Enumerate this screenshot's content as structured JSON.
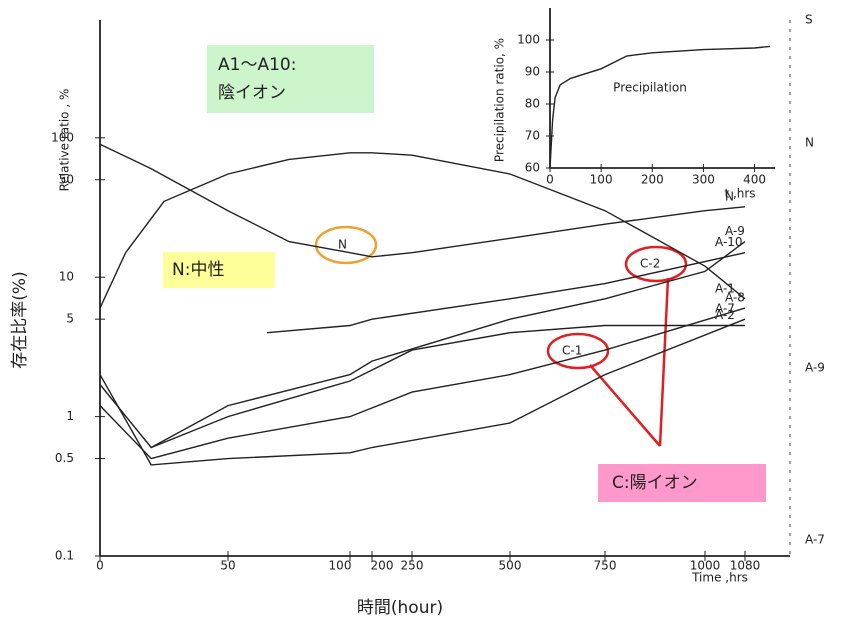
{
  "chart_data": [
    {
      "type": "line",
      "ylabel": "Relative ratio , %",
      "xlabel": "Time ,hrs",
      "ylabel_outer": "存在比率(%)",
      "xlabel_outer": "時間(hour)",
      "log_y": true,
      "ylim": [
        0.1,
        700
      ],
      "yticks": [
        0.1,
        0.5,
        1,
        5,
        10,
        50,
        100
      ],
      "xticks": [
        0,
        50,
        100,
        200,
        250,
        500,
        750,
        1000,
        1080
      ],
      "xlim": [
        0,
        1080
      ],
      "series": [
        {
          "name": "A-1",
          "color": "#222",
          "x": [
            0,
            10,
            25,
            50,
            75,
            100,
            200,
            250,
            500,
            750,
            1000,
            1080
          ],
          "values": [
            6,
            15,
            35,
            55,
            70,
            78,
            78,
            75,
            55,
            30,
            12,
            7
          ]
        },
        {
          "name": "N",
          "color": "#222",
          "x": [
            0,
            20,
            50,
            75,
            100,
            200,
            250,
            500,
            750,
            1000,
            1080
          ],
          "values": [
            90,
            60,
            30,
            18,
            15,
            14,
            15,
            19,
            24,
            30,
            32
          ]
        },
        {
          "name": "A-10",
          "color": "#222",
          "x": [
            66,
            100,
            200,
            500,
            750,
            1080
          ],
          "values": [
            4,
            4.5,
            5,
            7,
            9,
            15
          ]
        },
        {
          "name": "A-9",
          "color": "#222",
          "x": [
            20,
            50,
            100,
            200,
            500,
            750,
            1000,
            1080
          ],
          "values": [
            0.6,
            1.2,
            2,
            2.5,
            5,
            7,
            11,
            18
          ]
        },
        {
          "name": "A-2",
          "color": "#222",
          "x": [
            0,
            20,
            50,
            100,
            250,
            500,
            750,
            1080
          ],
          "values": [
            1.7,
            0.6,
            1,
            1.8,
            3,
            4,
            4.5,
            4.5
          ]
        },
        {
          "name": "A-8",
          "color": "#222",
          "x": [
            0,
            20,
            50,
            100,
            250,
            500,
            750,
            1080
          ],
          "values": [
            1.2,
            0.5,
            0.7,
            1,
            1.5,
            2,
            3,
            6
          ]
        },
        {
          "name": "A-7",
          "color": "#222",
          "x": [
            0,
            20,
            50,
            100,
            200,
            500,
            750,
            1080
          ],
          "values": [
            2,
            0.45,
            0.5,
            0.55,
            0.6,
            0.9,
            2,
            5
          ]
        }
      ],
      "right_labels": [
        "S",
        "N",
        "A-9",
        "A-7"
      ],
      "annotations": [
        "A1〜A10:",
        "陰イオン",
        "N:中性",
        "C:陽イオン",
        "N",
        "C-2",
        "C-1"
      ]
    },
    {
      "type": "line",
      "title": "Precipilation",
      "ylabel": "Precipilation ratio, %",
      "xlabel": "t ,hrs",
      "xlim": [
        0,
        440
      ],
      "ylim": [
        60,
        100
      ],
      "xticks": [
        0,
        100,
        200,
        300,
        400
      ],
      "yticks": [
        60,
        70,
        80,
        90,
        100
      ],
      "series": [
        {
          "name": "Precipitation",
          "color": "#222",
          "x": [
            0,
            5,
            10,
            20,
            40,
            60,
            100,
            150,
            200,
            300,
            400,
            430
          ],
          "values": [
            60,
            75,
            82,
            86,
            88,
            89,
            91,
            95,
            96,
            97,
            97.5,
            98
          ]
        }
      ]
    }
  ]
}
